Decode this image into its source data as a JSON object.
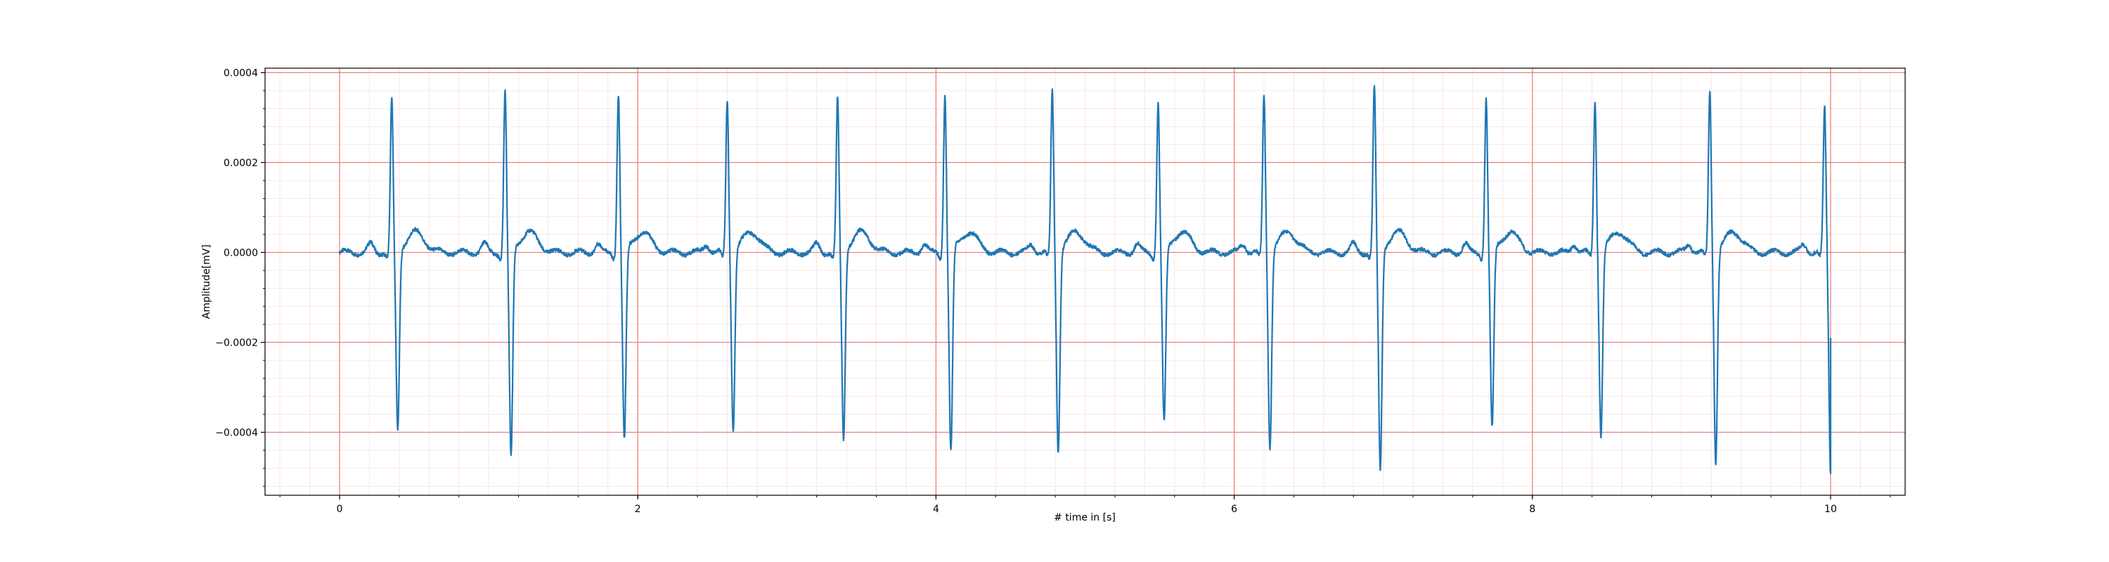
{
  "chart_data": {
    "type": "line",
    "title": "",
    "xlabel": "# time in [s]",
    "ylabel": "Amplitude[mV]",
    "xlim": [
      -0.5,
      10.5
    ],
    "ylim": [
      -0.00054,
      0.00041
    ],
    "xticks": [
      0,
      2,
      4,
      6,
      8,
      10
    ],
    "xtick_labels": [
      "0",
      "2",
      "4",
      "6",
      "8",
      "10"
    ],
    "yticks": [
      -0.0004,
      -0.0002,
      0.0,
      0.0002,
      0.0004
    ],
    "ytick_labels": [
      "−0.0004",
      "−0.0002",
      "0.0000",
      "0.0002",
      "0.0004"
    ],
    "grid": {
      "major": true,
      "minor": true,
      "major_color": "#f08080",
      "minor_color": "#fde4e4"
    },
    "line_color": "#1f77b4",
    "series": [
      {
        "name": "",
        "beats": [
          {
            "t": 0.35,
            "peak": 0.00034,
            "trough": -0.0004
          },
          {
            "t": 1.11,
            "peak": 0.000357,
            "trough": -0.000462
          },
          {
            "t": 1.87,
            "peak": 0.000352,
            "trough": -0.000425
          },
          {
            "t": 2.6,
            "peak": 0.000338,
            "trough": -0.000398
          },
          {
            "t": 3.34,
            "peak": 0.00034,
            "trough": -0.00042
          },
          {
            "t": 4.06,
            "peak": 0.00035,
            "trough": -0.00045
          },
          {
            "t": 4.78,
            "peak": 0.000357,
            "trough": -0.000448
          },
          {
            "t": 5.49,
            "peak": 0.000333,
            "trough": -0.000385
          },
          {
            "t": 6.2,
            "peak": 0.00035,
            "trough": -0.00044
          },
          {
            "t": 6.94,
            "peak": 0.000365,
            "trough": -0.00049
          },
          {
            "t": 7.69,
            "peak": 0.000342,
            "trough": -0.000398
          },
          {
            "t": 8.42,
            "peak": 0.000337,
            "trough": -0.00041
          },
          {
            "t": 9.19,
            "peak": 0.000356,
            "trough": -0.000468
          },
          {
            "t": 9.96,
            "peak": 0.000318,
            "trough": -0.00049
          }
        ],
        "t_end": 10.0,
        "end_value": -0.00019
      }
    ]
  }
}
